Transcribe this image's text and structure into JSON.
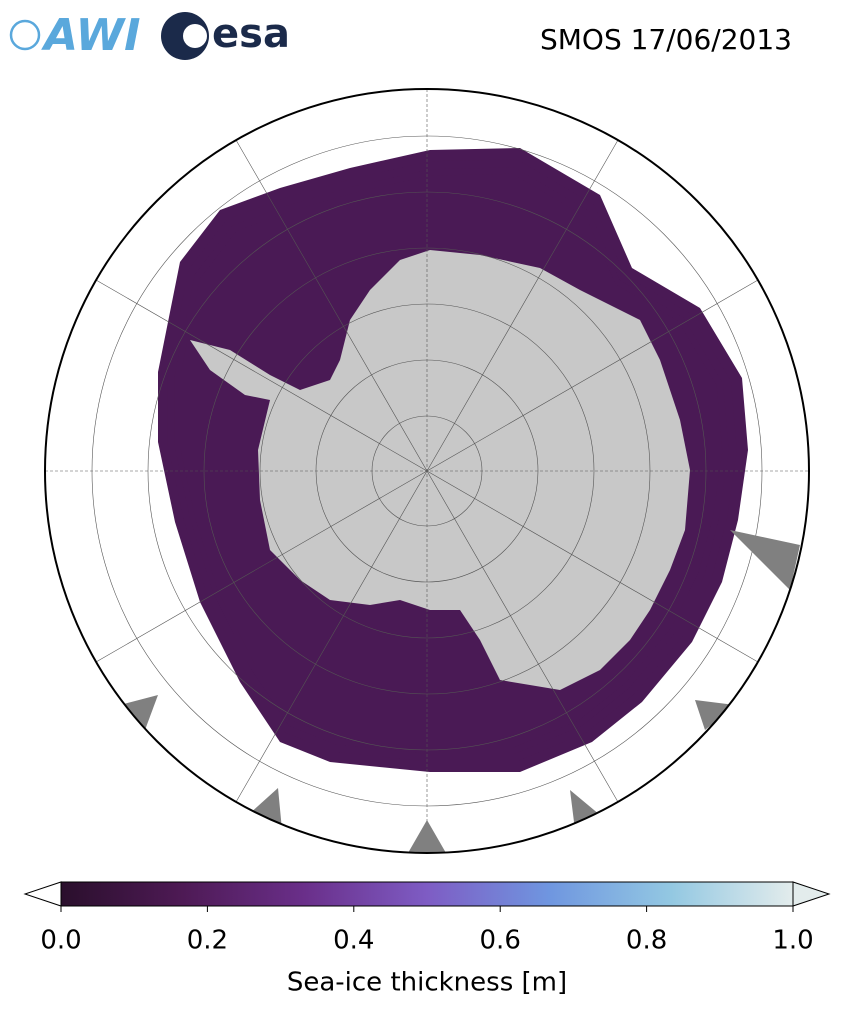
{
  "title": "SMOS 17/06/2013",
  "logos": [
    "AWI",
    "esa"
  ],
  "colorbar": {
    "label": "Sea-ice thickness [m]",
    "lim": [
      0,
      1
    ],
    "ticks": [
      {
        "value": 0,
        "label": "0.0"
      },
      0.2,
      0.4,
      0.6,
      0.8,
      {
        "value": 1,
        "label": "1.0"
      }
    ],
    "colors": [
      "#2a0f2c",
      "#4e1a55",
      "#6a2f8a",
      "#7e5cc4",
      "#6f96e0",
      "#93c8e2",
      "#e3ecec"
    ],
    "extend_colors": [
      "#ffffff",
      "#e3ecec"
    ]
  }
}
